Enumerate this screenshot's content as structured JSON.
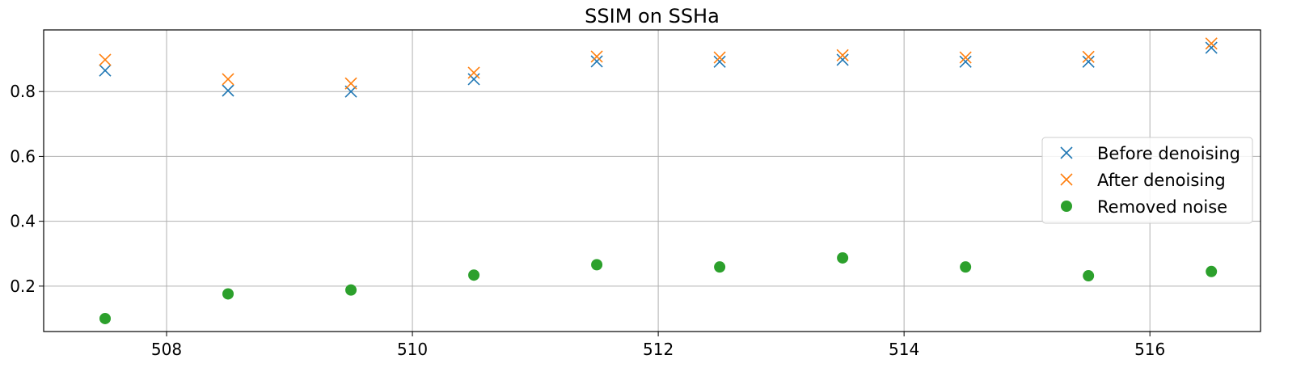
{
  "chart_data": {
    "type": "scatter",
    "title": "SSIM on SSHa",
    "xlabel": "",
    "ylabel": "",
    "xlim": [
      507.0,
      516.9
    ],
    "ylim": [
      0.06,
      0.99
    ],
    "xticks": [
      508,
      510,
      512,
      514,
      516
    ],
    "xtick_labels": [
      "508",
      "510",
      "512",
      "514",
      "516"
    ],
    "yticks": [
      0.2,
      0.4,
      0.6,
      0.8
    ],
    "ytick_labels": [
      "0.2",
      "0.4",
      "0.6",
      "0.8"
    ],
    "grid": true,
    "legend_position": "center-right",
    "x": [
      507.5,
      508.5,
      509.5,
      510.5,
      511.5,
      512.5,
      513.5,
      514.5,
      515.5,
      516.5
    ],
    "series": [
      {
        "name": "Before denoising",
        "marker": "x",
        "color": "#1f77b4",
        "values": [
          0.865,
          0.803,
          0.8,
          0.838,
          0.893,
          0.892,
          0.898,
          0.892,
          0.892,
          0.935
        ]
      },
      {
        "name": "After denoising",
        "marker": "x",
        "color": "#ff7f0e",
        "values": [
          0.898,
          0.838,
          0.825,
          0.858,
          0.908,
          0.905,
          0.912,
          0.905,
          0.907,
          0.948
        ]
      },
      {
        "name": "Removed noise",
        "marker": "o",
        "color": "#2ca02c",
        "values": [
          0.1,
          0.176,
          0.188,
          0.234,
          0.266,
          0.259,
          0.287,
          0.259,
          0.232,
          0.245
        ]
      }
    ]
  }
}
